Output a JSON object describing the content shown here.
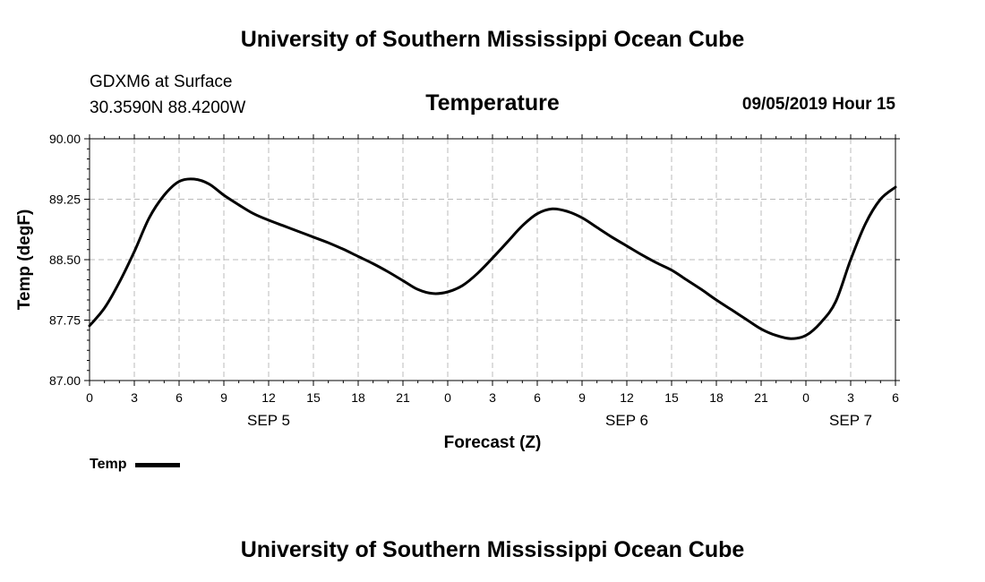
{
  "header": {
    "title": "University of Southern Mississippi Ocean Cube",
    "station_line1": "GDXM6 at Surface",
    "station_line2": "30.3590N 88.4200W",
    "chart_title": "Temperature",
    "timestamp": "09/05/2019 Hour 15"
  },
  "footer": {
    "title": "University of Southern Mississippi Ocean Cube"
  },
  "legend": {
    "label": "Temp",
    "color": "#000000"
  },
  "chart_data": {
    "type": "line",
    "title": "Temperature",
    "xlabel": "Forecast (Z)",
    "ylabel": "Temp (degF)",
    "xlim": [
      0,
      54
    ],
    "ylim": [
      87.0,
      90.0
    ],
    "grid": true,
    "legend_placement": "bottom-left",
    "x_ticks": [
      {
        "hour": 0,
        "label": "0"
      },
      {
        "hour": 3,
        "label": "3"
      },
      {
        "hour": 6,
        "label": "6"
      },
      {
        "hour": 9,
        "label": "9"
      },
      {
        "hour": 12,
        "label": "12"
      },
      {
        "hour": 15,
        "label": "15"
      },
      {
        "hour": 18,
        "label": "18"
      },
      {
        "hour": 21,
        "label": "21"
      },
      {
        "hour": 24,
        "label": "0"
      },
      {
        "hour": 27,
        "label": "3"
      },
      {
        "hour": 30,
        "label": "6"
      },
      {
        "hour": 33,
        "label": "9"
      },
      {
        "hour": 36,
        "label": "12"
      },
      {
        "hour": 39,
        "label": "15"
      },
      {
        "hour": 42,
        "label": "18"
      },
      {
        "hour": 45,
        "label": "21"
      },
      {
        "hour": 48,
        "label": "0"
      },
      {
        "hour": 51,
        "label": "3"
      },
      {
        "hour": 54,
        "label": "6"
      }
    ],
    "date_labels": [
      {
        "hour": 12,
        "label": "SEP 5"
      },
      {
        "hour": 36,
        "label": "SEP 6"
      },
      {
        "hour": 51,
        "label": "SEP 7"
      }
    ],
    "y_ticks": [
      {
        "value": 87.0,
        "label": "87.00"
      },
      {
        "value": 87.75,
        "label": "87.75"
      },
      {
        "value": 88.5,
        "label": "88.50"
      },
      {
        "value": 89.25,
        "label": "89.25"
      },
      {
        "value": 90.0,
        "label": "90.00"
      }
    ],
    "series": [
      {
        "name": "Temp",
        "color": "#000000",
        "x": [
          0,
          1,
          2,
          3,
          4,
          5,
          6,
          7,
          8,
          9,
          10,
          11,
          12,
          13,
          14,
          15,
          16,
          17,
          18,
          19,
          20,
          21,
          22,
          23,
          24,
          25,
          26,
          27,
          28,
          29,
          30,
          31,
          32,
          33,
          34,
          35,
          36,
          37,
          38,
          39,
          40,
          41,
          42,
          43,
          44,
          45,
          46,
          47,
          48,
          49,
          50,
          51,
          52,
          53,
          54
        ],
        "values": [
          87.68,
          87.9,
          88.22,
          88.6,
          89.02,
          89.3,
          89.47,
          89.5,
          89.44,
          89.3,
          89.18,
          89.07,
          88.99,
          88.92,
          88.85,
          88.78,
          88.71,
          88.63,
          88.54,
          88.45,
          88.35,
          88.24,
          88.13,
          88.08,
          88.1,
          88.18,
          88.33,
          88.52,
          88.72,
          88.92,
          89.07,
          89.13,
          89.1,
          89.02,
          88.9,
          88.78,
          88.67,
          88.56,
          88.46,
          88.37,
          88.25,
          88.13,
          88.0,
          87.88,
          87.76,
          87.64,
          87.56,
          87.52,
          87.56,
          87.72,
          87.98,
          88.5,
          88.95,
          89.25,
          89.4
        ]
      }
    ]
  }
}
